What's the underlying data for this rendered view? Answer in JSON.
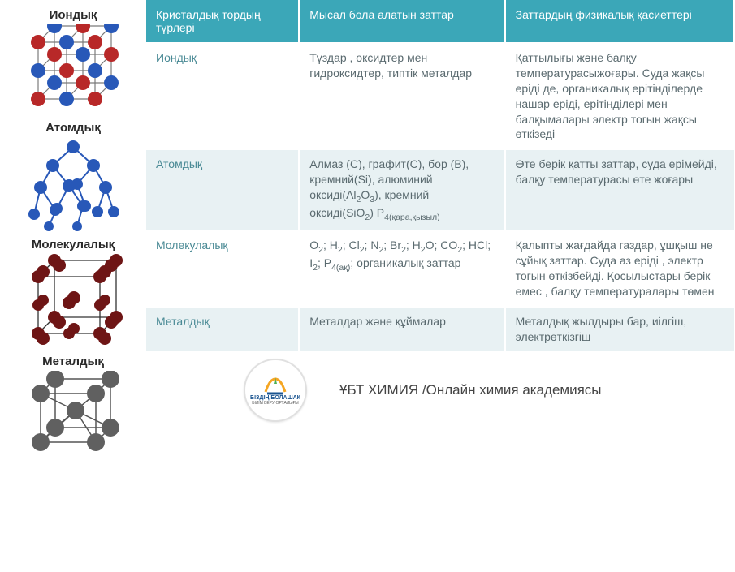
{
  "colors": {
    "header_bg": "#3ba7b8",
    "header_text": "#ffffff",
    "row_alt_bg": "#e8f1f3",
    "row_bg": "#ffffff",
    "cell_text": "#5a6a6f",
    "cell_text_teal": "#4a8a95",
    "border": "#ffffff",
    "sidebar_label": "#2a2a2a",
    "ball_red": "#b82828",
    "ball_blue": "#2858b8",
    "ball_darkred": "#6e1515",
    "ball_gray": "#606060",
    "bond": "#7a7a7a"
  },
  "sidebar": {
    "items": [
      {
        "label": "Иондық",
        "type": "ionic"
      },
      {
        "label": "Атомдық",
        "type": "atomic"
      },
      {
        "label": "Молекулалық",
        "type": "molecular"
      },
      {
        "label": "Металдық",
        "type": "metallic"
      }
    ]
  },
  "table": {
    "headers": [
      "Кристалдық тордың түрлері",
      "Мысал бола алатын заттар",
      "Заттардың физикалық қасиеттері"
    ],
    "rows": [
      {
        "name": "Иондық",
        "examples_html": "Тұздар , оксидтер мен гидроксидтер, типтік металдар",
        "props_html": "Қаттылығы және балқу температурасыжоғары. Суда жақсы еріді де, органикалық ерітінділерде нашар еріді, ерітінділері мен балқымалары электр тогын жақсы өткізеді",
        "alt": false
      },
      {
        "name": "Атомдық",
        "examples_html": "Алмаз (С), графит(С), бор (В), кремний(Si), алюминий оксиді(Al<sub>2</sub>O<sub>3</sub>), кремний оксиді(SiO<sub>2</sub>) P<sub>4(қара,қызыл)</sub>",
        "props_html": "Өте берік қатты заттар, суда ерімейді, балқу температурасы өте жоғары",
        "alt": true
      },
      {
        "name": "Молекулалық",
        "examples_html": "O<sub>2</sub>; H<sub>2</sub>; Cl<sub>2</sub>; N<sub>2</sub>; Br<sub>2</sub>; H<sub>2</sub>O; CO<sub>2</sub>; HCl; I<sub>2</sub>; P<sub>4(ақ)</sub>; органикалық заттар",
        "props_html": "Қалыпты жағдайда газдар, ұшқыш не сұйық заттар. Суда аз еріді , электр тогын өткізбейді. Қосылыстары берік емес , балқу температуралары төмен",
        "alt": false
      },
      {
        "name": "Металдық",
        "examples_html": "Металдар және құймалар",
        "props_html": "Металдық жылдыры бар, иілгіш, электрөткізгіш",
        "alt": true
      }
    ]
  },
  "footer": {
    "logo_line1": "БІЗДІҢ БОЛАШАҚ",
    "logo_line2": "БІЛІМ БЕРУ ОРТАЛЫҒЫ",
    "title": "ҰБТ ХИМИЯ /Онлайн химия академиясы"
  }
}
